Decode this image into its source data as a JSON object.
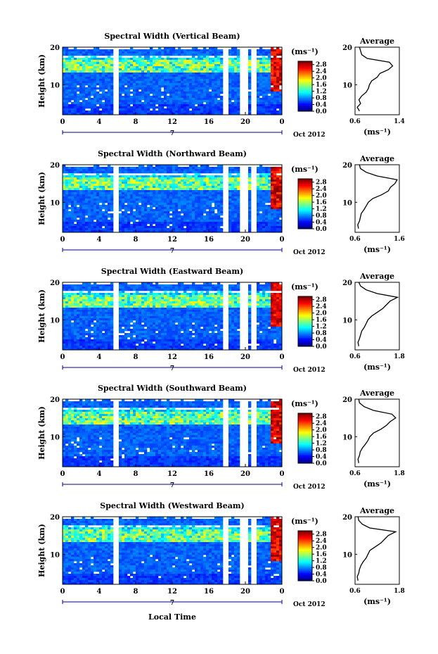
{
  "figure": {
    "date_label": "Oct 2012",
    "day_label": "7",
    "xlabel": "Local Time",
    "ylabel": "Height (km)",
    "unit": "(ms⁻¹)",
    "average_title": "Average",
    "average_xlabel": "(ms⁻¹)"
  },
  "chart_data": [
    {
      "type": "heatmap",
      "title": "Spectral Width (Vertical Beam)",
      "x_ticks": [
        "0",
        "4",
        "8",
        "12",
        "16",
        "20",
        "0"
      ],
      "xlim": [
        0,
        24
      ],
      "y_ticks": [
        "10",
        "20"
      ],
      "ylim": [
        2,
        20
      ],
      "colorbar_ticks": [
        "0.0",
        "0.4",
        "0.8",
        "1.2",
        "1.6",
        "2.0",
        "2.4",
        "2.8"
      ],
      "colorbar_range": [
        0,
        3
      ],
      "data_gaps_hours": [
        [
          5.6,
          6.2
        ],
        [
          17.6,
          18.0
        ],
        [
          19.4,
          20.2
        ],
        [
          20.6,
          21.2
        ]
      ],
      "average_profile": {
        "xlim": [
          0.6,
          1.4
        ],
        "x_ticks": [
          "0.6",
          "1.4"
        ],
        "y_ticks": [
          "10",
          "20"
        ],
        "height_km": [
          3,
          4,
          5,
          6,
          7,
          8,
          9,
          10,
          11,
          12,
          13,
          14,
          15,
          16,
          17,
          18,
          19,
          20
        ],
        "value": [
          0.68,
          0.64,
          0.7,
          0.67,
          0.72,
          0.8,
          0.84,
          0.86,
          0.9,
          1.0,
          1.05,
          1.2,
          1.28,
          1.22,
          0.82,
          0.72,
          0.7,
          0.68
        ]
      }
    },
    {
      "type": "heatmap",
      "title": "Spectral Width (Northward Beam)",
      "x_ticks": [
        "0",
        "4",
        "8",
        "12",
        "16",
        "20",
        "0"
      ],
      "xlim": [
        0,
        24
      ],
      "y_ticks": [
        "10",
        "20"
      ],
      "ylim": [
        2,
        20
      ],
      "colorbar_ticks": [
        "0.0",
        "0.4",
        "0.8",
        "1.2",
        "1.6",
        "2.0",
        "2.4",
        "2.8"
      ],
      "colorbar_range": [
        0,
        3
      ],
      "data_gaps_hours": [
        [
          5.6,
          6.2
        ],
        [
          17.6,
          18.0
        ],
        [
          19.4,
          20.2
        ],
        [
          20.6,
          21.2
        ]
      ],
      "average_profile": {
        "xlim": [
          0.6,
          1.6
        ],
        "x_ticks": [
          "0.6",
          "1.6"
        ],
        "y_ticks": [
          "10",
          "20"
        ],
        "height_km": [
          3,
          4,
          5,
          6,
          7,
          8,
          9,
          10,
          11,
          12,
          13,
          14,
          15,
          16,
          17,
          18,
          19,
          20
        ],
        "value": [
          0.68,
          0.66,
          0.7,
          0.72,
          0.74,
          0.8,
          0.85,
          0.9,
          1.0,
          1.2,
          1.35,
          1.4,
          1.5,
          1.55,
          1.1,
          0.85,
          0.72,
          0.7
        ]
      }
    },
    {
      "type": "heatmap",
      "title": "Spectral Width (Eastward Beam)",
      "x_ticks": [
        "0",
        "4",
        "8",
        "12",
        "16",
        "20",
        "0"
      ],
      "xlim": [
        0,
        24
      ],
      "y_ticks": [
        "10",
        "20"
      ],
      "ylim": [
        2,
        20
      ],
      "colorbar_ticks": [
        "0.0",
        "0.4",
        "0.8",
        "1.2",
        "1.6",
        "2.0",
        "2.4",
        "2.8"
      ],
      "colorbar_range": [
        0,
        3
      ],
      "data_gaps_hours": [
        [
          5.6,
          6.2
        ],
        [
          17.6,
          18.0
        ],
        [
          19.4,
          20.2
        ],
        [
          20.6,
          21.2
        ]
      ],
      "average_profile": {
        "xlim": [
          0.6,
          1.8
        ],
        "x_ticks": [
          "0.6",
          "1.8"
        ],
        "y_ticks": [
          "10",
          "20"
        ],
        "height_km": [
          3,
          4,
          5,
          6,
          7,
          8,
          9,
          10,
          11,
          12,
          13,
          14,
          15,
          16,
          17,
          18,
          19,
          20
        ],
        "value": [
          0.7,
          0.68,
          0.72,
          0.75,
          0.78,
          0.85,
          0.9,
          0.95,
          1.05,
          1.2,
          1.35,
          1.45,
          1.55,
          1.75,
          1.2,
          0.9,
          0.75,
          0.7
        ]
      }
    },
    {
      "type": "heatmap",
      "title": "Spectral Width (Southward Beam)",
      "x_ticks": [
        "0",
        "4",
        "8",
        "12",
        "16",
        "20",
        "0"
      ],
      "xlim": [
        0,
        24
      ],
      "y_ticks": [
        "10",
        "20"
      ],
      "ylim": [
        2,
        20
      ],
      "colorbar_ticks": [
        "0.0",
        "0.4",
        "0.8",
        "1.2",
        "1.6",
        "2.0",
        "2.4",
        "2.8"
      ],
      "colorbar_range": [
        0,
        3
      ],
      "data_gaps_hours": [
        [
          5.6,
          6.2
        ],
        [
          17.6,
          18.0
        ],
        [
          19.4,
          20.2
        ],
        [
          20.6,
          21.2
        ]
      ],
      "average_profile": {
        "xlim": [
          0.6,
          1.8
        ],
        "x_ticks": [
          "0.6",
          "1.8"
        ],
        "y_ticks": [
          "10",
          "20"
        ],
        "height_km": [
          3,
          4,
          5,
          6,
          7,
          8,
          9,
          10,
          11,
          12,
          13,
          14,
          15,
          16,
          17,
          18,
          19,
          20
        ],
        "value": [
          0.7,
          0.68,
          0.72,
          0.74,
          0.8,
          0.88,
          0.95,
          1.0,
          1.1,
          1.3,
          1.45,
          1.55,
          1.7,
          1.6,
          1.1,
          0.85,
          0.72,
          0.7
        ]
      }
    },
    {
      "type": "heatmap",
      "title": "Spectral Width (Westward Beam)",
      "x_ticks": [
        "0",
        "4",
        "8",
        "12",
        "16",
        "20",
        "0"
      ],
      "xlim": [
        0,
        24
      ],
      "y_ticks": [
        "10",
        "20"
      ],
      "ylim": [
        2,
        20
      ],
      "colorbar_ticks": [
        "0.0",
        "0.4",
        "0.8",
        "1.2",
        "1.6",
        "2.0",
        "2.4",
        "2.8"
      ],
      "colorbar_range": [
        0,
        3
      ],
      "data_gaps_hours": [
        [
          5.6,
          6.2
        ],
        [
          17.6,
          18.0
        ],
        [
          19.4,
          20.2
        ],
        [
          20.6,
          21.2
        ]
      ],
      "average_profile": {
        "xlim": [
          0.6,
          1.8
        ],
        "x_ticks": [
          "0.6",
          "1.8"
        ],
        "y_ticks": [
          "10",
          "20"
        ],
        "height_km": [
          3,
          4,
          5,
          6,
          7,
          8,
          9,
          10,
          11,
          12,
          13,
          14,
          15,
          16,
          17,
          18,
          19,
          20
        ],
        "value": [
          0.68,
          0.66,
          0.7,
          0.72,
          0.76,
          0.82,
          0.9,
          0.95,
          1.0,
          1.15,
          1.3,
          1.4,
          1.5,
          1.7,
          1.0,
          0.8,
          0.7,
          0.68
        ]
      }
    }
  ]
}
